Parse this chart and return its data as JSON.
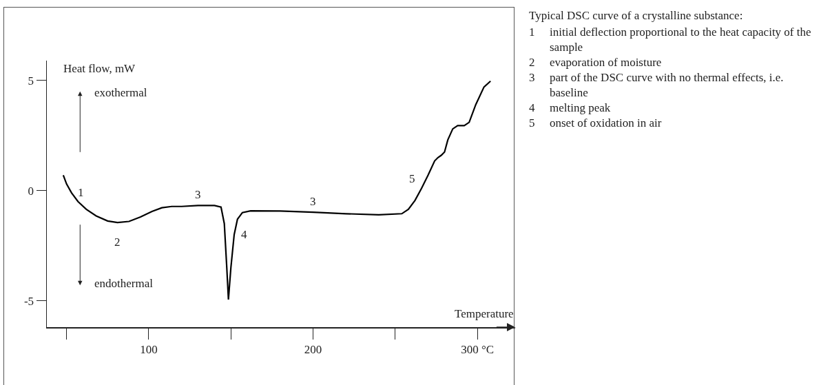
{
  "chart_data": {
    "type": "line",
    "title": "Typical DSC curve of a crystalline substance:",
    "xlabel": "Temperature",
    "ylabel": "Heat flow, mW",
    "x": [
      48,
      50,
      53,
      57,
      62,
      68,
      75,
      81,
      88,
      95,
      102,
      108,
      114,
      120,
      130,
      140,
      144,
      146,
      147.5,
      148.5,
      150,
      152,
      154,
      157,
      162,
      180,
      200,
      220,
      240,
      254,
      258,
      262,
      266,
      270,
      274,
      276,
      278,
      280,
      282,
      285,
      288,
      292,
      295,
      299,
      304,
      308
    ],
    "series": [
      {
        "color": "#000000",
        "values": [
          0.7,
          0.3,
          -0.1,
          -0.5,
          -0.85,
          -1.15,
          -1.38,
          -1.45,
          -1.4,
          -1.2,
          -0.95,
          -0.78,
          -0.72,
          -0.72,
          -0.68,
          -0.68,
          -0.75,
          -1.5,
          -3.5,
          -4.95,
          -3.5,
          -2.0,
          -1.3,
          -1.0,
          -0.92,
          -0.93,
          -0.98,
          -1.05,
          -1.1,
          -1.05,
          -0.85,
          -0.45,
          0.1,
          0.7,
          1.35,
          1.5,
          1.6,
          1.75,
          2.3,
          2.8,
          2.95,
          2.95,
          3.1,
          3.9,
          4.7,
          4.97
        ]
      }
    ],
    "xlim": [
      38,
      323
    ],
    "ylim": [
      -6.2,
      5.9
    ],
    "xticks": [
      {
        "value": 50,
        "label": null
      },
      100,
      {
        "value": 150,
        "label": null
      },
      200,
      {
        "value": 250,
        "label": null
      },
      {
        "value": 300,
        "label": "300 °C"
      }
    ],
    "yticks": [
      -5,
      0,
      5
    ],
    "grid": false,
    "marker": "none",
    "line_style": "solid",
    "annotations": [
      "exothermal",
      "endothermal",
      {
        "text": "1",
        "x": 53,
        "y": -0.1
      },
      {
        "text": "2",
        "x": 81,
        "y": -1.45
      },
      {
        "text": "3",
        "x": 130,
        "y": -0.68
      },
      {
        "text": "3",
        "x": 200,
        "y": -0.98
      },
      {
        "text": "4",
        "x": 152,
        "y": -2.0
      },
      {
        "text": "5",
        "x": 266,
        "y": 0.1
      },
      "1 initial deflection proportional to the heat capacity of the sample",
      "2 evaporation of moisture",
      "3 part of the DSC curve with no thermal effects, i.e. baseline",
      "4 melting peak",
      "5 onset of oxidation in air"
    ]
  }
}
